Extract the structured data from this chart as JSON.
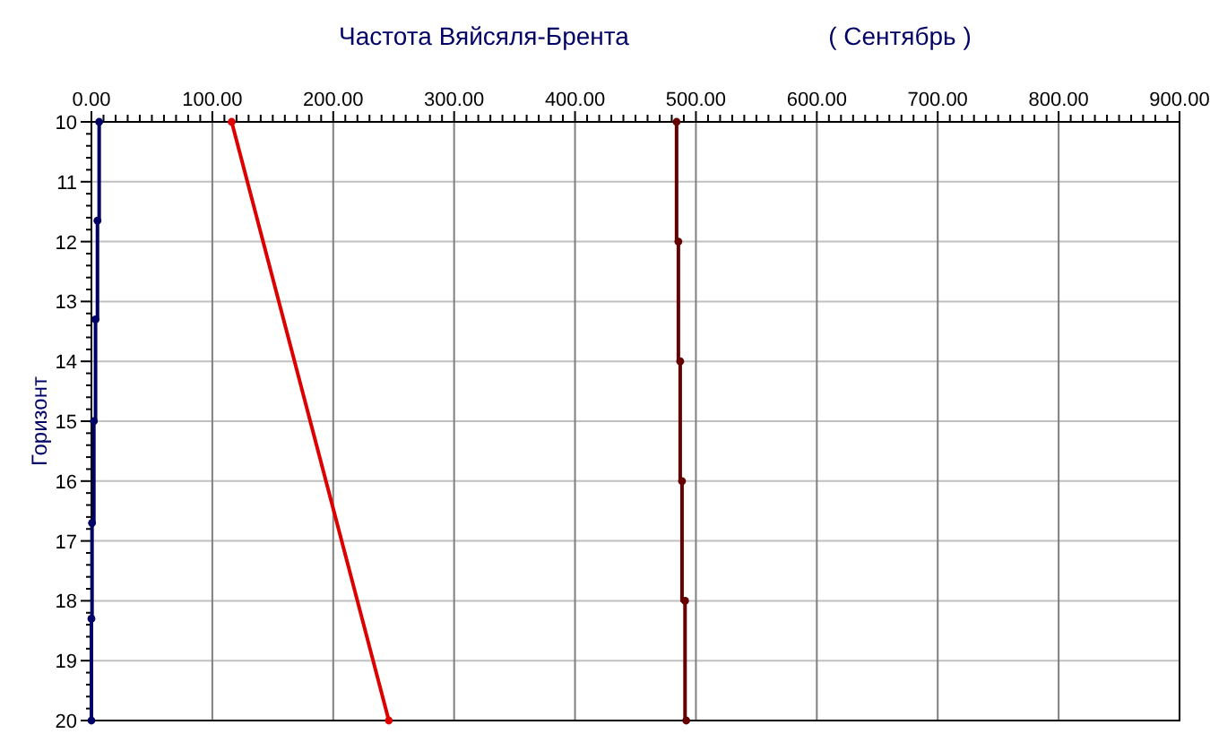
{
  "chart_data": {
    "type": "line",
    "title": "Частота Вяйсяля-Брента",
    "subtitle": "( Сентябрь )",
    "ylabel": "Горизонт",
    "xlim": [
      0,
      900
    ],
    "xticks": [
      {
        "value": 0,
        "label": "0.00"
      },
      {
        "value": 100,
        "label": "100.00"
      },
      {
        "value": 200,
        "label": "200.00"
      },
      {
        "value": 300,
        "label": "300.00"
      },
      {
        "value": 400,
        "label": "400.00"
      },
      {
        "value": 500,
        "label": "500.00"
      },
      {
        "value": 600,
        "label": "600.00"
      },
      {
        "value": 700,
        "label": "700.00"
      },
      {
        "value": 800,
        "label": "800.00"
      },
      {
        "value": 900,
        "label": "900.00"
      }
    ],
    "ylim": [
      20,
      10
    ],
    "yticks": [
      10,
      11,
      12,
      13,
      14,
      15,
      16,
      17,
      18,
      19,
      20
    ],
    "grid": true,
    "marker": "circle",
    "series": [
      {
        "type": "step",
        "color": "#000066",
        "x": [
          6.4,
          5,
          3.4,
          2,
          0.5,
          0,
          0
        ],
        "values": [
          10,
          11.65,
          13.3,
          15,
          16.7,
          18.3,
          20
        ]
      },
      {
        "color": "#dd0000",
        "x": [
          116,
          246
        ],
        "values": [
          10,
          20
        ]
      },
      {
        "type": "step",
        "color": "#660000",
        "x": [
          484,
          485.5,
          487,
          488.5,
          491,
          492
        ],
        "values": [
          10,
          12,
          14,
          16,
          18,
          20
        ]
      }
    ]
  }
}
